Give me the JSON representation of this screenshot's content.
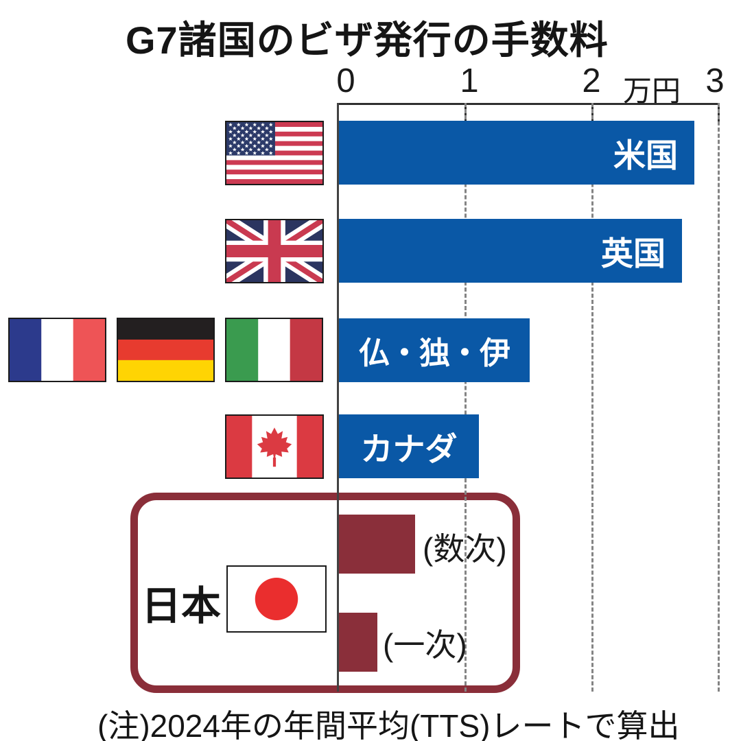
{
  "title": "G7諸国のビザ発行の手数料",
  "axis": {
    "tick_labels": [
      "0",
      "1",
      "2",
      "3"
    ],
    "unit_label": "万円"
  },
  "japan_box": {
    "label": "日本"
  },
  "note": "(注)2024年の年間平均(TTS)レートで算出",
  "colors": {
    "bar_blue": "#0a58a6",
    "bar_maroon": "#8a2f3a",
    "japan_box_border": "#8a2e39"
  },
  "flags": [
    "us-flag",
    "uk-flag",
    "france-flag",
    "germany-flag",
    "italy-flag",
    "canada-flag",
    "japan-flag"
  ],
  "chart_data": {
    "type": "bar",
    "orientation": "horizontal",
    "title": "G7諸国のビザ発行の手数料",
    "categories": [
      "米国",
      "英国",
      "仏・独・伊",
      "カナダ",
      "日本(数次)",
      "日本(一次)"
    ],
    "values": [
      2.8,
      2.7,
      1.5,
      1.1,
      0.6,
      0.3
    ],
    "bar_labels": [
      "米国",
      "英国",
      "仏・独・伊",
      "カナダ"
    ],
    "japan_bar_labels": [
      "(数次)",
      "(一次)"
    ],
    "unit": "万円",
    "xlabel": "万円",
    "xlim": [
      0,
      3
    ],
    "x_ticks": [
      0,
      1,
      2,
      3
    ],
    "grid": "dashed vertical lines at 1, 2, 3; solid baseline at 0",
    "legend": "none",
    "note": "(注)2024年の年間平均(TTS)レートで算出",
    "series_colors": {
      "g7_others": "#0a58a6",
      "japan": "#8a2f3a"
    }
  }
}
